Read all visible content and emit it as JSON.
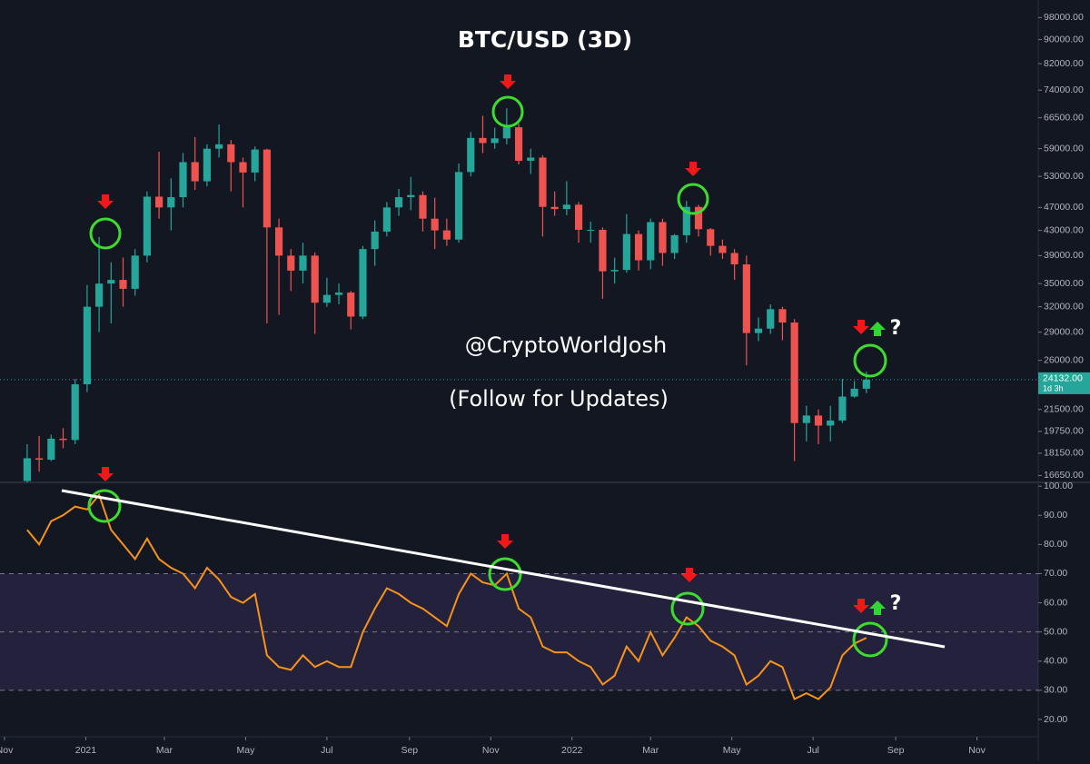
{
  "chart_data": [
    {
      "type": "candlestick",
      "title": "BTC/USD (3D)",
      "annotations": [
        "@CryptoWorldJosh",
        "(Follow for Updates)",
        "?"
      ],
      "up_color": "#26a69a",
      "down_color": "#ef5350",
      "log_scale": true,
      "xlim": [
        -3.4,
        776
      ],
      "ylim": [
        16270,
        104900
      ],
      "yticks": [
        {
          "value": 16650,
          "label": "16650.00"
        },
        {
          "value": 18150,
          "label": "18150.00"
        },
        {
          "value": 19750,
          "label": "19750.00"
        },
        {
          "value": 21500,
          "label": "21500.00"
        },
        {
          "value": 26000,
          "label": "26000.00"
        },
        {
          "value": 29000,
          "label": "29000.00"
        },
        {
          "value": 32000,
          "label": "32000.00"
        },
        {
          "value": 35000,
          "label": "35000.00"
        },
        {
          "value": 39000,
          "label": "39000.00"
        },
        {
          "value": 43000,
          "label": "43000.00"
        },
        {
          "value": 47000,
          "label": "47000.00"
        },
        {
          "value": 53000,
          "label": "53000.00"
        },
        {
          "value": 59000,
          "label": "59000.00"
        },
        {
          "value": 66500,
          "label": "66500.00"
        },
        {
          "value": 74000,
          "label": "74000.00"
        },
        {
          "value": 82000,
          "label": "82000.00"
        },
        {
          "value": 90000,
          "label": "90000.00"
        },
        {
          "value": 98000,
          "label": "98000.00"
        }
      ],
      "last_price": {
        "value": 24132,
        "label": "24132.00",
        "countdown": "1d 3h"
      },
      "x": [
        17,
        26,
        35,
        44,
        53,
        62,
        71,
        80,
        89,
        98,
        107,
        116,
        125,
        134,
        143,
        152,
        161,
        170,
        179,
        188,
        197,
        206,
        215,
        224,
        233,
        242,
        251,
        260,
        269,
        278,
        287,
        296,
        305,
        314,
        323,
        332,
        341,
        350,
        359,
        368,
        377,
        386,
        395,
        404,
        413,
        422,
        431,
        440,
        449,
        458,
        467,
        476,
        485,
        494,
        503,
        512,
        521,
        530,
        539,
        548,
        557,
        566,
        575,
        584,
        593,
        602,
        611,
        620,
        629,
        638,
        647
      ],
      "open": [
        16300,
        17800,
        17700,
        19200,
        19100,
        23700,
        32000,
        35000,
        35500,
        34300,
        39000,
        49000,
        47000,
        48900,
        56000,
        52000,
        59000,
        60000,
        56000,
        53800,
        58800,
        43500,
        39000,
        36800,
        39000,
        32500,
        33500,
        33800,
        30800,
        40000,
        42800,
        47000,
        48900,
        49300,
        45000,
        43000,
        41500,
        53900,
        61500,
        60300,
        61400,
        64100,
        56300,
        57000,
        47100,
        46700,
        47500,
        43100,
        43100,
        36700,
        36900,
        42400,
        38300,
        44400,
        39400,
        42200,
        47100,
        43200,
        40500,
        39400,
        37700,
        28900,
        29400,
        31700,
        30100,
        20400,
        21000,
        20200,
        20600,
        22600,
        23300
      ],
      "high": [
        18800,
        19400,
        19500,
        20000,
        24200,
        34800,
        41900,
        38000,
        38700,
        40000,
        50000,
        58300,
        52600,
        58000,
        61700,
        60000,
        64800,
        61000,
        57000,
        59500,
        59000,
        45000,
        40000,
        41000,
        39500,
        35800,
        35000,
        34000,
        40500,
        44700,
        48000,
        50500,
        52900,
        50000,
        48800,
        45000,
        55700,
        62900,
        67000,
        64000,
        69000,
        65000,
        59000,
        57500,
        50000,
        52000,
        48000,
        44500,
        43500,
        38700,
        45800,
        43000,
        45000,
        45000,
        42400,
        48200,
        47500,
        43400,
        41500,
        40000,
        39000,
        30700,
        32300,
        32000,
        30500,
        21800,
        21500,
        21800,
        24200,
        24000,
        24900
      ],
      "low": [
        16200,
        16900,
        17600,
        18500,
        18800,
        23000,
        29000,
        30000,
        32000,
        33400,
        38000,
        45000,
        43000,
        47000,
        50300,
        51000,
        57000,
        50000,
        47000,
        52000,
        30000,
        31000,
        34000,
        35000,
        28800,
        32000,
        32300,
        29300,
        30500,
        37500,
        42000,
        45500,
        46500,
        42800,
        40000,
        40500,
        41000,
        53000,
        58000,
        59000,
        60000,
        55500,
        53500,
        42000,
        45500,
        45600,
        41000,
        41000,
        33000,
        35000,
        36500,
        36800,
        37000,
        37500,
        38500,
        41000,
        42000,
        39000,
        38500,
        35500,
        25500,
        28000,
        28800,
        28100,
        17600,
        19000,
        18800,
        19000,
        20400,
        22500,
        22900
      ],
      "close": [
        17800,
        17700,
        19200,
        19100,
        23700,
        32000,
        35000,
        35500,
        34300,
        39000,
        49000,
        47000,
        48900,
        56000,
        52000,
        59000,
        60000,
        56000,
        53800,
        58800,
        43500,
        39000,
        36800,
        39000,
        32500,
        33500,
        33800,
        30800,
        40000,
        42800,
        47000,
        48900,
        49300,
        45000,
        43000,
        41500,
        53900,
        61500,
        60300,
        61400,
        64100,
        56300,
        57000,
        47100,
        46700,
        47500,
        43100,
        43100,
        36700,
        36900,
        42400,
        38300,
        44400,
        39400,
        42200,
        47100,
        43200,
        40500,
        39400,
        37700,
        28900,
        29400,
        31700,
        30100,
        20400,
        21000,
        20200,
        20600,
        22600,
        23300,
        24132
      ]
    },
    {
      "type": "line",
      "color": "#f7931a",
      "annotations": [
        "?"
      ],
      "xlim": [
        -3.4,
        776
      ],
      "ylim": [
        14.7,
        101.6
      ],
      "yticks": [
        {
          "value": 20,
          "label": "20.00"
        },
        {
          "value": 30,
          "label": "30.00"
        },
        {
          "value": 40,
          "label": "40.00"
        },
        {
          "value": 50,
          "label": "50.00"
        },
        {
          "value": 60,
          "label": "60.00"
        },
        {
          "value": 70,
          "label": "70.00"
        },
        {
          "value": 80,
          "label": "80.00"
        },
        {
          "value": 90,
          "label": "90.00"
        },
        {
          "value": 100,
          "label": "100.00"
        }
      ],
      "levels": [
        30,
        50,
        70
      ],
      "xticks": [
        {
          "value": 0,
          "label": "Nov"
        },
        {
          "value": 61,
          "label": "2021"
        },
        {
          "value": 120,
          "label": "Mar"
        },
        {
          "value": 181,
          "label": "May"
        },
        {
          "value": 242,
          "label": "Jul"
        },
        {
          "value": 304,
          "label": "Sep"
        },
        {
          "value": 365,
          "label": "Nov"
        },
        {
          "value": 426,
          "label": "2022"
        },
        {
          "value": 485,
          "label": "Mar"
        },
        {
          "value": 546,
          "label": "May"
        },
        {
          "value": 607,
          "label": "Jul"
        },
        {
          "value": 669,
          "label": "Sep"
        },
        {
          "value": 730,
          "label": "Nov"
        }
      ],
      "x": [
        17,
        26,
        35,
        44,
        53,
        62,
        71,
        80,
        89,
        98,
        107,
        116,
        125,
        134,
        143,
        152,
        161,
        170,
        179,
        188,
        197,
        206,
        215,
        224,
        233,
        242,
        251,
        260,
        269,
        278,
        287,
        296,
        305,
        314,
        323,
        332,
        341,
        350,
        359,
        368,
        377,
        386,
        395,
        404,
        413,
        422,
        431,
        440,
        449,
        458,
        467,
        476,
        485,
        494,
        503,
        512,
        521,
        530,
        539,
        548,
        557,
        566,
        575,
        584,
        593,
        602,
        611,
        620,
        629,
        638,
        647
      ],
      "values": [
        85,
        80,
        88,
        90,
        93,
        92,
        97,
        85,
        80,
        75,
        82,
        75,
        72,
        70,
        65,
        72,
        68,
        62,
        60,
        63,
        42,
        38,
        37,
        42,
        38,
        40,
        38,
        38,
        50,
        58,
        65,
        63,
        60,
        58,
        55,
        52,
        63,
        70,
        67,
        66,
        70,
        58,
        55,
        45,
        43,
        43,
        40,
        38,
        32,
        35,
        45,
        40,
        50,
        42,
        48,
        55,
        52,
        47,
        45,
        42,
        32,
        35,
        40,
        38,
        27,
        29,
        27,
        31,
        42,
        46,
        48
      ]
    }
  ]
}
